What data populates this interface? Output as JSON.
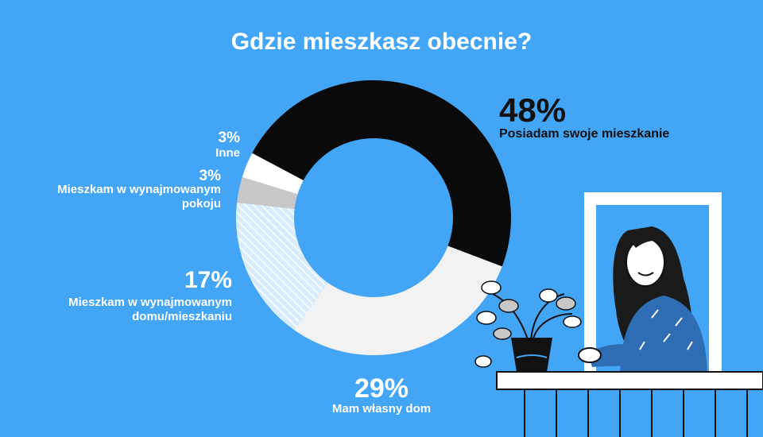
{
  "title": "Gdzie mieszkasz obecnie?",
  "chart_data": {
    "type": "pie",
    "title": "Gdzie mieszkasz obecnie?",
    "series": [
      {
        "label": "Posiadam swoje mieszkanie",
        "value": 48,
        "display": "48%",
        "color": "#0a0a0a",
        "pattern": "solid"
      },
      {
        "label": "Mam własny dom",
        "value": 29,
        "display": "29%",
        "color": "#f2f2f2",
        "pattern": "solid"
      },
      {
        "label": "Mieszkam w wynajmowanym domu/mieszkaniu",
        "value": 17,
        "display": "17%",
        "color": "#f2f2f2",
        "pattern": "hatched"
      },
      {
        "label": "Mieszkam w wynajmowanym pokoju",
        "value": 3,
        "display": "3%",
        "color": "#c8c8c8",
        "pattern": "solid"
      },
      {
        "label": "Inne",
        "value": 3,
        "display": "3%",
        "color": "#ffffff",
        "pattern": "solid"
      }
    ]
  },
  "labels": {
    "own_flat": {
      "pct": "48%",
      "text": "Posiadam swoje mieszkanie"
    },
    "own_house": {
      "pct": "29%",
      "text": "Mam własny dom"
    },
    "rented_home": {
      "pct": "17%",
      "line1": "Mieszkam w wynajmowanym",
      "line2": "domu/mieszkaniu"
    },
    "rented_room": {
      "pct": "3%",
      "line1": "Mieszkam w wynajmowanym",
      "line2": "pokoju"
    },
    "other": {
      "pct": "3%",
      "text": "Inne"
    }
  }
}
